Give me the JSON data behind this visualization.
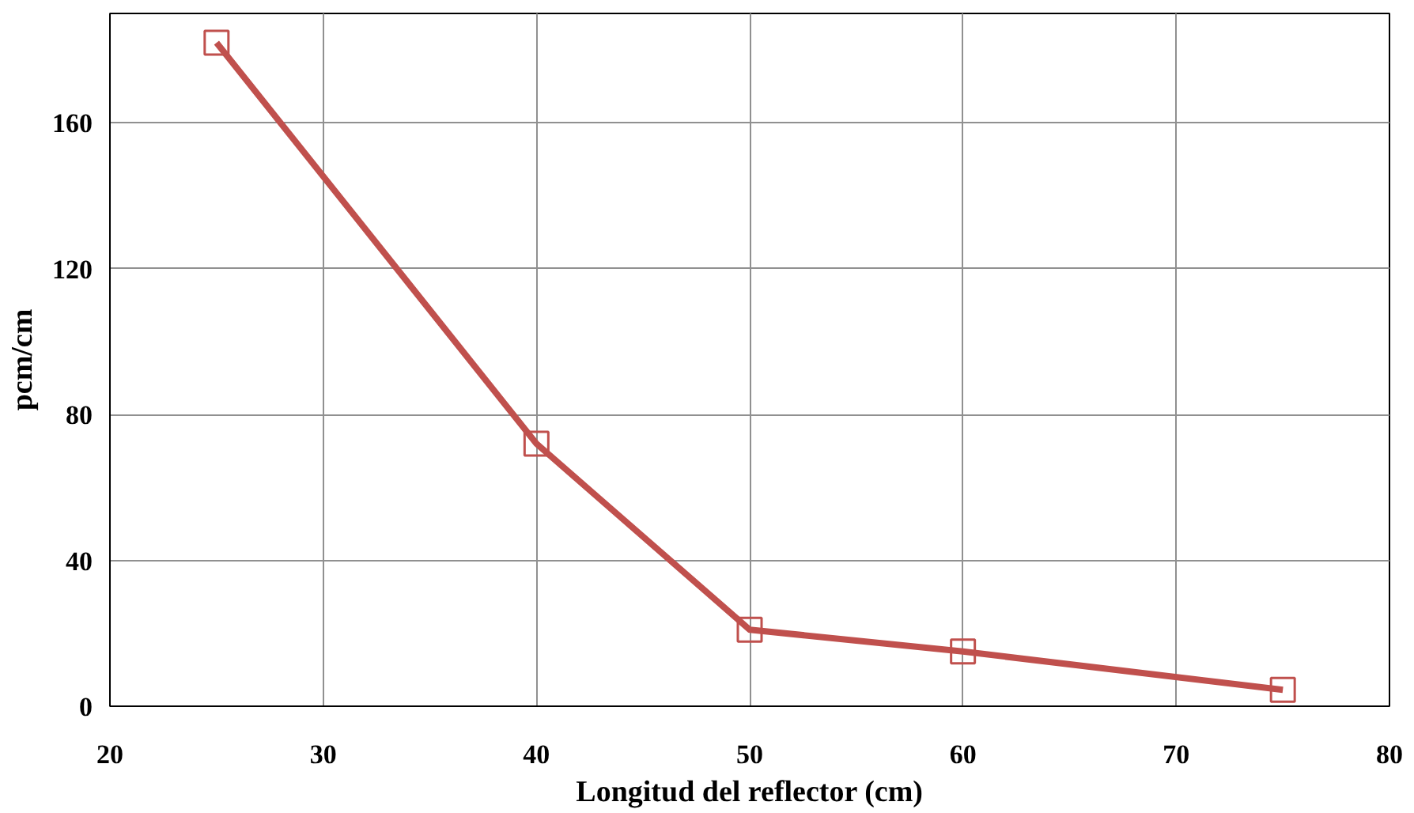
{
  "chart_data": {
    "type": "line",
    "xlabel": "Longitud del reflector (cm)",
    "ylabel": "pcm/cm",
    "x": [
      25,
      40,
      50,
      60,
      75
    ],
    "series": [
      {
        "color": "#c0504d",
        "values": [
          182,
          72,
          21,
          15,
          4.5
        ]
      }
    ],
    "xlim": [
      20,
      80
    ],
    "xticks": [
      20,
      30,
      40,
      50,
      60,
      70,
      80
    ],
    "ylim": [
      0,
      190
    ],
    "yticks": [
      0,
      40,
      80,
      120,
      160
    ],
    "grid": true,
    "marker": "square",
    "line_style": "solid"
  }
}
